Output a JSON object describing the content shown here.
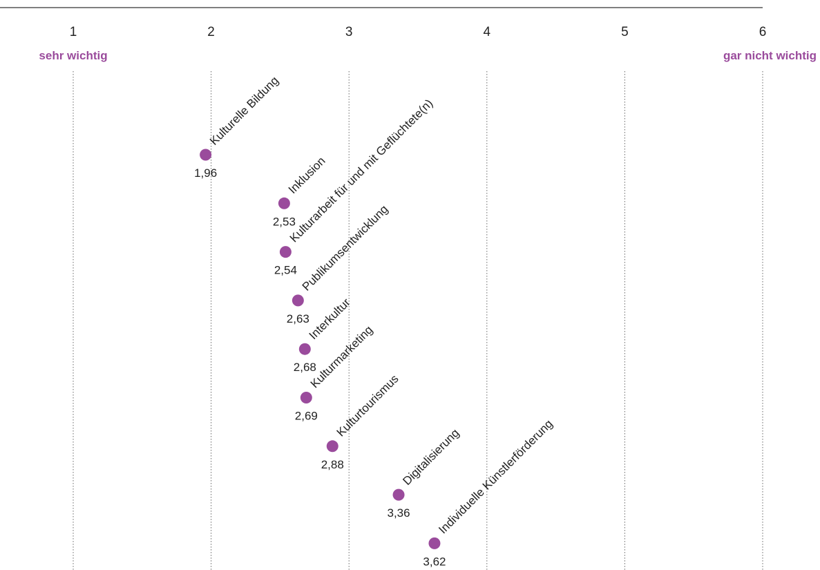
{
  "chart_data": {
    "type": "scatter",
    "title": "",
    "xlabel": "",
    "ylabel": "",
    "xlim": [
      1,
      6
    ],
    "ticks": [
      1,
      2,
      3,
      4,
      5,
      6
    ],
    "tick_labels": [
      "1",
      "2",
      "3",
      "4",
      "5",
      "6"
    ],
    "scale_left_label": "sehr wichtig",
    "scale_right_label": "gar nicht wichtig",
    "grid": true,
    "accent_color": "#9a4b9c",
    "points": [
      {
        "category": "Kulturelle Bildung",
        "value": 1.96,
        "value_label": "1,96"
      },
      {
        "category": "Inklusion",
        "value": 2.53,
        "value_label": "2,53"
      },
      {
        "category": "Kulturarbeit für und mit Geflüchtete(n)",
        "value": 2.54,
        "value_label": "2,54"
      },
      {
        "category": "Publikumsentwicklung",
        "value": 2.63,
        "value_label": "2,63"
      },
      {
        "category": "Interkultur",
        "value": 2.68,
        "value_label": "2,68"
      },
      {
        "category": "Kulturmarketing",
        "value": 2.69,
        "value_label": "2,69"
      },
      {
        "category": "Kulturtourismus",
        "value": 2.88,
        "value_label": "2,88"
      },
      {
        "category": "Digitalisierung",
        "value": 3.36,
        "value_label": "3,36"
      },
      {
        "category": "Individuelle Künstlerförderung",
        "value": 3.62,
        "value_label": "3,62"
      }
    ]
  }
}
